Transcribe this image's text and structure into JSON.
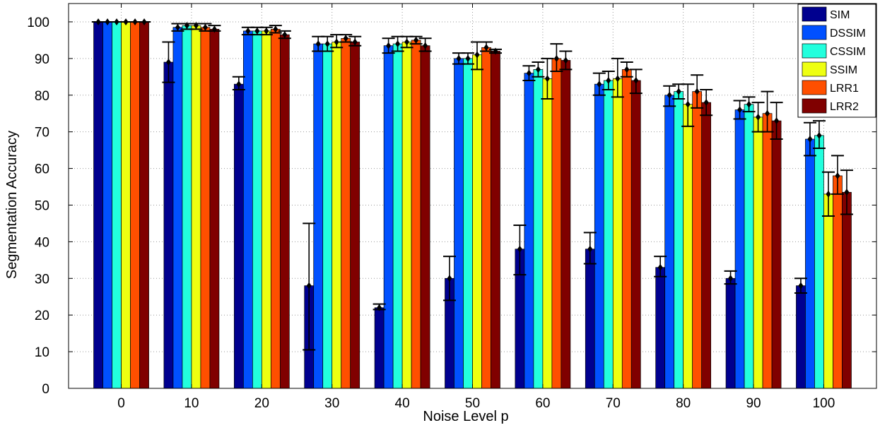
{
  "chart_data": {
    "type": "bar",
    "title": "",
    "xlabel": "Noise Level p",
    "ylabel": "Segmentation Accuracy",
    "ylim": [
      0,
      105
    ],
    "yticks": [
      0,
      10,
      20,
      30,
      40,
      50,
      60,
      70,
      80,
      90,
      100
    ],
    "grid": true,
    "legend_position": "top-right",
    "categories": [
      "0",
      "10",
      "20",
      "30",
      "40",
      "50",
      "60",
      "70",
      "80",
      "90",
      "100"
    ],
    "series": [
      {
        "name": "SIM",
        "color": "#00008F",
        "values": [
          100,
          89,
          83,
          28,
          22,
          30,
          38,
          38,
          33,
          30,
          28
        ],
        "err_low": [
          100,
          83.5,
          81.5,
          10.5,
          21.5,
          24,
          31,
          34,
          30.5,
          28.5,
          26
        ],
        "err_high": [
          100,
          94.5,
          85,
          45,
          23,
          36,
          44.5,
          42.5,
          36,
          32,
          30
        ]
      },
      {
        "name": "DSSIM",
        "color": "#0050FF",
        "values": [
          100,
          98.5,
          97.5,
          94,
          93.5,
          90,
          86,
          83,
          80,
          76,
          68
        ],
        "err_low": [
          100,
          97.5,
          96.5,
          92,
          91.5,
          88.5,
          84,
          80,
          77,
          73.5,
          63.5
        ],
        "err_high": [
          100,
          99.5,
          98.5,
          96,
          95.5,
          91.5,
          88,
          86,
          82.5,
          78.5,
          72.5
        ]
      },
      {
        "name": "CSSIM",
        "color": "#22FFDD",
        "values": [
          100,
          99,
          97.5,
          94,
          94,
          90,
          87,
          84,
          81,
          77.5,
          69
        ],
        "err_low": [
          100,
          98,
          96.5,
          92,
          92,
          88.5,
          85,
          81.5,
          79,
          75.5,
          65.5
        ],
        "err_high": [
          100,
          99.5,
          98.5,
          96,
          96,
          91.5,
          89,
          86.5,
          83,
          79.5,
          73
        ]
      },
      {
        "name": "SSIM",
        "color": "#EEFF11",
        "values": [
          100,
          99,
          97.5,
          94.5,
          94.5,
          91,
          84.5,
          84.5,
          77.5,
          74,
          53
        ],
        "err_low": [
          100,
          98,
          96.5,
          93,
          93,
          87,
          79,
          79.5,
          71.5,
          70,
          47
        ],
        "err_high": [
          100,
          99.5,
          98.5,
          96.5,
          96,
          94.5,
          90,
          90,
          83,
          78,
          59
        ]
      },
      {
        "name": "LRR1",
        "color": "#FF4F00",
        "values": [
          100,
          98.5,
          98,
          95.5,
          95,
          93,
          90,
          87,
          81,
          75,
          58
        ],
        "err_low": [
          100,
          97.5,
          97,
          94.5,
          94,
          92,
          86.5,
          85,
          76.5,
          70,
          53
        ],
        "err_high": [
          100,
          99.5,
          99,
          96.5,
          96,
          94.5,
          94,
          89,
          85.5,
          81,
          63.5
        ]
      },
      {
        "name": "LRR2",
        "color": "#800000",
        "values": [
          100,
          98,
          96.5,
          94.5,
          93.5,
          92,
          89.5,
          84,
          78,
          73,
          53.5
        ],
        "err_low": [
          100,
          97.5,
          95.5,
          93.5,
          92,
          91.5,
          87,
          80.5,
          74.5,
          68,
          47.5
        ],
        "err_high": [
          100,
          99,
          97.5,
          96,
          95.5,
          92.5,
          92,
          87,
          81.5,
          78,
          59.5
        ]
      }
    ]
  }
}
